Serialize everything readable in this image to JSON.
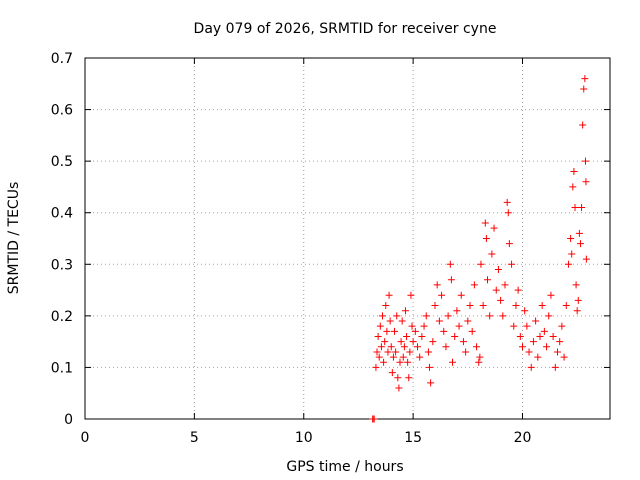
{
  "chart_data": {
    "type": "scatter",
    "title": "Day 079 of 2026, SRMTID for receiver cyne",
    "xlabel": "GPS time / hours",
    "ylabel": "SRMTID / TECUs",
    "xlim": [
      0,
      24
    ],
    "ylim": [
      0,
      0.7
    ],
    "xticks": [
      0,
      5,
      10,
      15,
      20
    ],
    "xtick_labels": [
      "0",
      "5",
      "10",
      "15",
      "20"
    ],
    "yticks": [
      0,
      0.1,
      0.2,
      0.3,
      0.4,
      0.5,
      0.6,
      0.7
    ],
    "ytick_labels": [
      "0",
      "0.1",
      "0.2",
      "0.3",
      "0.4",
      "0.5",
      "0.6",
      "0.7"
    ],
    "grid": true,
    "marker": "+",
    "color": "#ff0000",
    "series": [
      {
        "name": "SRMTID",
        "points": [
          [
            13.15,
            0.0
          ],
          [
            13.2,
            0.0
          ],
          [
            13.22,
            0.0
          ],
          [
            13.3,
            0.1
          ],
          [
            13.35,
            0.13
          ],
          [
            13.4,
            0.16
          ],
          [
            13.45,
            0.12
          ],
          [
            13.5,
            0.18
          ],
          [
            13.55,
            0.14
          ],
          [
            13.6,
            0.2
          ],
          [
            13.65,
            0.11
          ],
          [
            13.7,
            0.15
          ],
          [
            13.75,
            0.22
          ],
          [
            13.8,
            0.17
          ],
          [
            13.85,
            0.13
          ],
          [
            13.9,
            0.24
          ],
          [
            13.95,
            0.19
          ],
          [
            14.0,
            0.14
          ],
          [
            14.05,
            0.09
          ],
          [
            14.1,
            0.12
          ],
          [
            14.15,
            0.17
          ],
          [
            14.2,
            0.13
          ],
          [
            14.25,
            0.2
          ],
          [
            14.3,
            0.08
          ],
          [
            14.35,
            0.06
          ],
          [
            14.4,
            0.11
          ],
          [
            14.45,
            0.15
          ],
          [
            14.5,
            0.19
          ],
          [
            14.55,
            0.12
          ],
          [
            14.6,
            0.14
          ],
          [
            14.65,
            0.21
          ],
          [
            14.7,
            0.16
          ],
          [
            14.75,
            0.11
          ],
          [
            14.8,
            0.08
          ],
          [
            14.85,
            0.13
          ],
          [
            14.9,
            0.24
          ],
          [
            14.95,
            0.18
          ],
          [
            15.0,
            0.15
          ],
          [
            15.1,
            0.17
          ],
          [
            15.2,
            0.14
          ],
          [
            15.3,
            0.12
          ],
          [
            15.4,
            0.16
          ],
          [
            15.5,
            0.18
          ],
          [
            15.6,
            0.2
          ],
          [
            15.7,
            0.13
          ],
          [
            15.75,
            0.1
          ],
          [
            15.8,
            0.07
          ],
          [
            15.9,
            0.15
          ],
          [
            16.0,
            0.22
          ],
          [
            16.1,
            0.26
          ],
          [
            16.2,
            0.19
          ],
          [
            16.3,
            0.24
          ],
          [
            16.4,
            0.17
          ],
          [
            16.5,
            0.14
          ],
          [
            16.6,
            0.2
          ],
          [
            16.7,
            0.3
          ],
          [
            16.75,
            0.27
          ],
          [
            16.8,
            0.11
          ],
          [
            16.9,
            0.16
          ],
          [
            17.0,
            0.21
          ],
          [
            17.1,
            0.18
          ],
          [
            17.2,
            0.24
          ],
          [
            17.3,
            0.15
          ],
          [
            17.4,
            0.13
          ],
          [
            17.5,
            0.19
          ],
          [
            17.6,
            0.22
          ],
          [
            17.7,
            0.17
          ],
          [
            17.8,
            0.26
          ],
          [
            17.9,
            0.14
          ],
          [
            18.0,
            0.11
          ],
          [
            18.05,
            0.12
          ],
          [
            18.1,
            0.3
          ],
          [
            18.2,
            0.22
          ],
          [
            18.3,
            0.38
          ],
          [
            18.35,
            0.35
          ],
          [
            18.4,
            0.27
          ],
          [
            18.5,
            0.2
          ],
          [
            18.6,
            0.32
          ],
          [
            18.7,
            0.37
          ],
          [
            18.8,
            0.25
          ],
          [
            18.9,
            0.29
          ],
          [
            19.0,
            0.23
          ],
          [
            19.1,
            0.2
          ],
          [
            19.2,
            0.26
          ],
          [
            19.3,
            0.42
          ],
          [
            19.35,
            0.4
          ],
          [
            19.4,
            0.34
          ],
          [
            19.5,
            0.3
          ],
          [
            19.6,
            0.18
          ],
          [
            19.7,
            0.22
          ],
          [
            19.8,
            0.25
          ],
          [
            19.9,
            0.16
          ],
          [
            20.0,
            0.14
          ],
          [
            20.1,
            0.21
          ],
          [
            20.2,
            0.18
          ],
          [
            20.3,
            0.13
          ],
          [
            20.4,
            0.1
          ],
          [
            20.5,
            0.15
          ],
          [
            20.6,
            0.19
          ],
          [
            20.7,
            0.12
          ],
          [
            20.8,
            0.16
          ],
          [
            20.9,
            0.22
          ],
          [
            21.0,
            0.17
          ],
          [
            21.1,
            0.14
          ],
          [
            21.2,
            0.2
          ],
          [
            21.3,
            0.24
          ],
          [
            21.4,
            0.16
          ],
          [
            21.5,
            0.1
          ],
          [
            21.6,
            0.13
          ],
          [
            21.7,
            0.15
          ],
          [
            21.8,
            0.18
          ],
          [
            21.9,
            0.12
          ],
          [
            22.0,
            0.22
          ],
          [
            22.1,
            0.3
          ],
          [
            22.2,
            0.35
          ],
          [
            22.25,
            0.32
          ],
          [
            22.3,
            0.45
          ],
          [
            22.35,
            0.48
          ],
          [
            22.4,
            0.41
          ],
          [
            22.45,
            0.26
          ],
          [
            22.5,
            0.21
          ],
          [
            22.55,
            0.23
          ],
          [
            22.6,
            0.36
          ],
          [
            22.65,
            0.34
          ],
          [
            22.7,
            0.41
          ],
          [
            22.75,
            0.57
          ],
          [
            22.8,
            0.64
          ],
          [
            22.85,
            0.66
          ],
          [
            22.88,
            0.5
          ],
          [
            22.9,
            0.46
          ],
          [
            22.92,
            0.31
          ]
        ]
      }
    ]
  }
}
